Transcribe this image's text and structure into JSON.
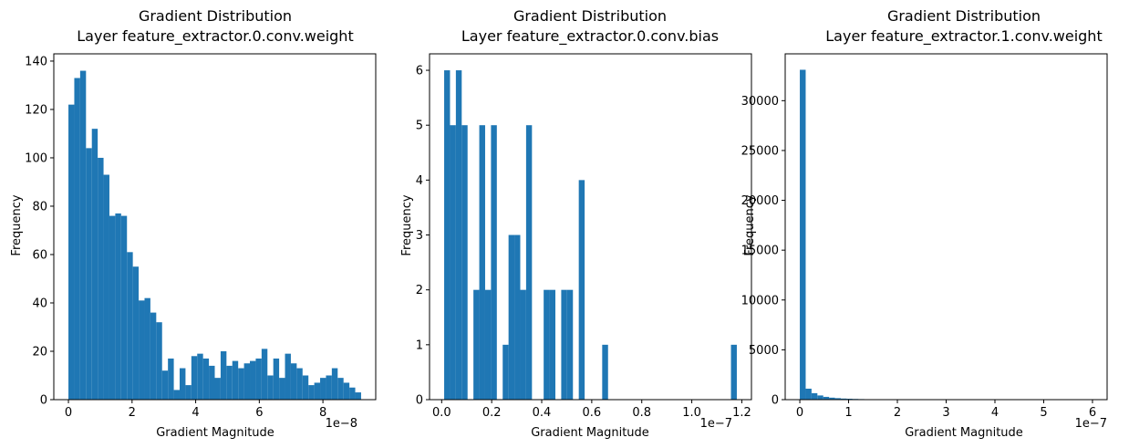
{
  "chart_data": [
    {
      "type": "bar",
      "title": "Gradient Distribution",
      "subtitle": "Layer feature_extractor.0.conv.weight",
      "xlabel": "Gradient Magnitude",
      "ylabel": "Frequency",
      "x_scale_label": "1e−8",
      "x_range": [
        0,
        9.2
      ],
      "xlim": [
        -0.46,
        9.66
      ],
      "ylim": [
        0,
        143
      ],
      "xticks": [
        0,
        2,
        4,
        6,
        8
      ],
      "yticks": [
        0,
        20,
        40,
        60,
        80,
        100,
        120,
        140
      ],
      "color": "#1f77b4",
      "values": [
        122,
        133,
        136,
        104,
        112,
        100,
        93,
        76,
        77,
        76,
        61,
        55,
        41,
        42,
        36,
        32,
        12,
        17,
        4,
        13,
        6,
        18,
        19,
        17,
        14,
        9,
        20,
        14,
        16,
        13,
        15,
        16,
        17,
        21,
        10,
        17,
        9,
        19,
        15,
        13,
        10,
        6,
        7,
        9,
        10,
        13,
        9,
        7,
        5,
        3
      ]
    },
    {
      "type": "bar",
      "title": "Gradient Distribution",
      "subtitle": "Layer feature_extractor.0.conv.bias",
      "xlabel": "Gradient Magnitude",
      "ylabel": "Frequency",
      "x_scale_label": "1e−7",
      "x_range": [
        0.01,
        1.18
      ],
      "xlim": [
        -0.0485,
        1.2385
      ],
      "ylim": [
        0,
        6.3
      ],
      "xticks": [
        0.0,
        0.2,
        0.4,
        0.6,
        0.8,
        1.0,
        1.2
      ],
      "xtick_labels": [
        "0.0",
        "0.2",
        "0.4",
        "0.6",
        "0.8",
        "1.0",
        "1.2"
      ],
      "yticks": [
        0,
        1,
        2,
        3,
        4,
        5,
        6
      ],
      "color": "#1f77b4",
      "values": [
        6,
        5,
        6,
        5,
        0,
        2,
        5,
        2,
        5,
        0,
        1,
        3,
        3,
        2,
        5,
        0,
        0,
        2,
        2,
        0,
        2,
        2,
        0,
        4,
        0,
        0,
        0,
        1,
        0,
        0,
        0,
        0,
        0,
        0,
        0,
        0,
        0,
        0,
        0,
        0,
        0,
        0,
        0,
        0,
        0,
        0,
        0,
        0,
        0,
        1
      ]
    },
    {
      "type": "bar",
      "title": "Gradient Distribution",
      "subtitle": "Layer feature_extractor.1.conv.weight",
      "xlabel": "Gradient Magnitude",
      "ylabel": "Frequency",
      "x_scale_label": "1e−7",
      "x_range": [
        0,
        6.0
      ],
      "xlim": [
        -0.3,
        6.3
      ],
      "ylim": [
        0,
        34700
      ],
      "xticks": [
        0,
        1,
        2,
        3,
        4,
        5,
        6
      ],
      "yticks": [
        0,
        5000,
        10000,
        15000,
        20000,
        25000,
        30000
      ],
      "color": "#1f77b4",
      "values": [
        33100,
        1100,
        650,
        420,
        280,
        200,
        150,
        110,
        90,
        70,
        55,
        45,
        35,
        28,
        22,
        18,
        15,
        12,
        10,
        9,
        8,
        7,
        6,
        5,
        5,
        4,
        4,
        3,
        3,
        3,
        2,
        2,
        2,
        2,
        1,
        1,
        1,
        1,
        1,
        1,
        1,
        1,
        1,
        1,
        1,
        1,
        1,
        1,
        1,
        1
      ]
    }
  ]
}
